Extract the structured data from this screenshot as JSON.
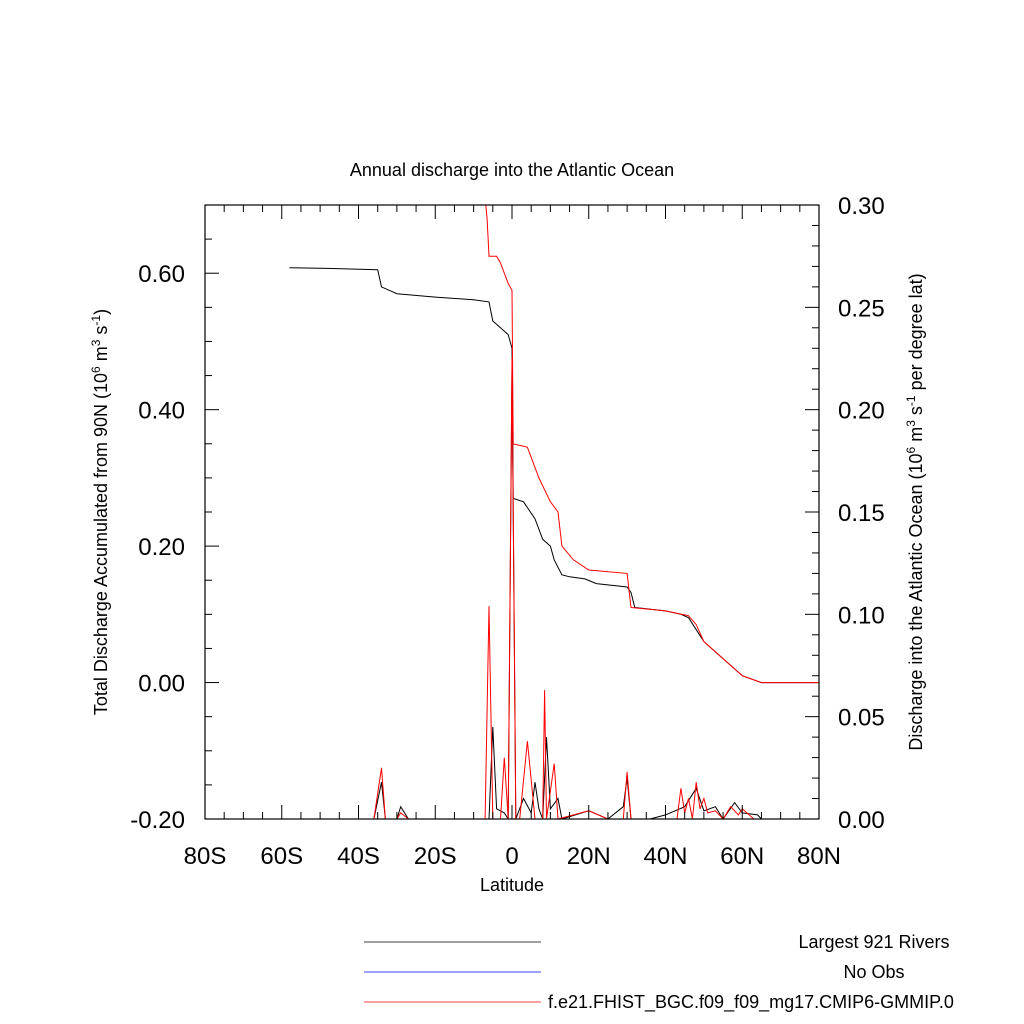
{
  "chart_data": {
    "type": "line",
    "title": "Annual discharge into the Atlantic Ocean",
    "xlabel": "Latitude",
    "ylabel_left": "Total Discharge Accumulated from 90N (10",
    "ylabel_left_sup1": "6",
    "ylabel_left_mid": " m",
    "ylabel_left_sup2": "3",
    "ylabel_left_mid2": " s",
    "ylabel_left_sup3": "-1",
    "ylabel_left_end": ")",
    "ylabel_right": "Discharge into the Atlantic Ocean (10",
    "ylabel_right_sup1": "6",
    "ylabel_right_mid": " m",
    "ylabel_right_sup2": "3",
    "ylabel_right_mid2": " s",
    "ylabel_right_sup3": "-1",
    "ylabel_right_end": " per degree lat)",
    "xlim": [
      -80,
      80
    ],
    "ylim_left": [
      -0.2,
      0.7
    ],
    "ylim_right": [
      0,
      0.3
    ],
    "x_ticks": [
      -80,
      -60,
      -40,
      -20,
      0,
      20,
      40,
      60,
      80
    ],
    "x_tick_labels": [
      "80S",
      "60S",
      "40S",
      "20S",
      "0",
      "20N",
      "40N",
      "60N",
      "80N"
    ],
    "y_left_ticks": [
      -0.2,
      0.0,
      0.2,
      0.4,
      0.6
    ],
    "y_left_tick_labels": [
      "-0.20",
      "0.00",
      "0.20",
      "0.40",
      "0.60"
    ],
    "y_right_ticks": [
      0,
      0.05,
      0.1,
      0.15,
      0.2,
      0.25,
      0.3
    ],
    "y_right_tick_labels": [
      "0.00",
      "0.05",
      "0.10",
      "0.15",
      "0.20",
      "0.25",
      "0.30"
    ],
    "grid": false,
    "legend_position": "bottom",
    "series": [
      {
        "name": "Largest 921 Rivers",
        "color": "#000000",
        "axis": "left",
        "points": [
          [
            -58,
            0.608
          ],
          [
            -48,
            0.607
          ],
          [
            -35,
            0.605
          ],
          [
            -34,
            0.58
          ],
          [
            -32,
            0.575
          ],
          [
            -30,
            0.57
          ],
          [
            -20,
            0.565
          ],
          [
            -10,
            0.561
          ],
          [
            -6,
            0.558
          ],
          [
            -5,
            0.53
          ],
          [
            -3,
            0.52
          ],
          [
            -1,
            0.51
          ],
          [
            0,
            0.49
          ],
          [
            0.3,
            0.27
          ],
          [
            3,
            0.265
          ],
          [
            6,
            0.24
          ],
          [
            8,
            0.21
          ],
          [
            10,
            0.2
          ],
          [
            11,
            0.18
          ],
          [
            13,
            0.158
          ],
          [
            15,
            0.155
          ],
          [
            19,
            0.152
          ],
          [
            22,
            0.145
          ],
          [
            30,
            0.14
          ],
          [
            31,
            0.132
          ],
          [
            32,
            0.11
          ],
          [
            40,
            0.105
          ],
          [
            44,
            0.1
          ],
          [
            46,
            0.095
          ],
          [
            50,
            0.06
          ],
          [
            54,
            0.04
          ],
          [
            60,
            0.01
          ],
          [
            65,
            0.0
          ],
          [
            80,
            0.0
          ]
        ]
      },
      {
        "name": "No Obs",
        "color": "#0000ff",
        "axis": "left",
        "points": []
      },
      {
        "name": "f.e21.FHIST_BGC.f09_f09_mg17.CMIP6-GMMIP.0",
        "color": "#ff0000",
        "axis": "left",
        "points": [
          [
            -7,
            0.71
          ],
          [
            -6.5,
            0.68
          ],
          [
            -6,
            0.625
          ],
          [
            -4,
            0.625
          ],
          [
            -3,
            0.615
          ],
          [
            -2,
            0.6
          ],
          [
            -1,
            0.585
          ],
          [
            0,
            0.575
          ],
          [
            0.3,
            0.35
          ],
          [
            4,
            0.345
          ],
          [
            7,
            0.3
          ],
          [
            10,
            0.265
          ],
          [
            12,
            0.25
          ],
          [
            13,
            0.2
          ],
          [
            16,
            0.18
          ],
          [
            20,
            0.165
          ],
          [
            30,
            0.16
          ],
          [
            31,
            0.11
          ],
          [
            40,
            0.105
          ],
          [
            46,
            0.098
          ],
          [
            48,
            0.085
          ],
          [
            50,
            0.06
          ],
          [
            54,
            0.04
          ],
          [
            60,
            0.01
          ],
          [
            65,
            0.0
          ],
          [
            80,
            0.0
          ]
        ]
      },
      {
        "name": "Largest 921 Rivers",
        "color": "#000000",
        "axis": "right",
        "points": [
          [
            -80,
            0
          ],
          [
            -36,
            0
          ],
          [
            -34,
            0.018
          ],
          [
            -33,
            0.0
          ],
          [
            -30,
            0
          ],
          [
            -29,
            0.006
          ],
          [
            -27,
            0
          ],
          [
            -8,
            0
          ],
          [
            -6,
            0.0
          ],
          [
            -5,
            0.045
          ],
          [
            -4,
            0.005
          ],
          [
            -2,
            0.003
          ],
          [
            -1,
            0.0
          ],
          [
            0,
            0.22
          ],
          [
            1,
            0.0
          ],
          [
            3,
            0.01
          ],
          [
            5,
            0.003
          ],
          [
            6,
            0.018
          ],
          [
            7,
            0.005
          ],
          [
            8,
            0.0
          ],
          [
            9,
            0.04
          ],
          [
            10,
            0.005
          ],
          [
            12,
            0.01
          ],
          [
            13,
            0.0
          ],
          [
            20,
            0.004
          ],
          [
            25,
            0.0
          ],
          [
            29,
            0.006
          ],
          [
            30,
            0.02
          ],
          [
            31,
            0.0
          ],
          [
            36,
            0.0
          ],
          [
            40,
            0.002
          ],
          [
            45,
            0.006
          ],
          [
            48,
            0.015
          ],
          [
            50,
            0.004
          ],
          [
            53,
            0.006
          ],
          [
            55,
            0.0
          ],
          [
            58,
            0.008
          ],
          [
            60,
            0.003
          ],
          [
            64,
            0.002
          ],
          [
            65,
            0.0
          ],
          [
            80,
            0
          ]
        ]
      },
      {
        "name": "f.e21.FHIST_BGC.f09_f09_mg17.CMIP6-GMMIP.0",
        "color": "#ff0000",
        "axis": "right",
        "points": [
          [
            -80,
            0
          ],
          [
            -36,
            0
          ],
          [
            -34,
            0.025
          ],
          [
            -33,
            0.0
          ],
          [
            -30,
            0
          ],
          [
            -29,
            0.003
          ],
          [
            -27,
            0
          ],
          [
            -8,
            0
          ],
          [
            -7,
            0.0
          ],
          [
            -6,
            0.104
          ],
          [
            -5,
            0.0
          ],
          [
            -3,
            0.0
          ],
          [
            -2,
            0.03
          ],
          [
            -1,
            0.0
          ],
          [
            0,
            0.225
          ],
          [
            1,
            0.0
          ],
          [
            2,
            0.0
          ],
          [
            4,
            0.038
          ],
          [
            6,
            0.0
          ],
          [
            8,
            0.0
          ],
          [
            8.5,
            0.063
          ],
          [
            9,
            0.0
          ],
          [
            11,
            0.027
          ],
          [
            12,
            0.0
          ],
          [
            20,
            0.004
          ],
          [
            25,
            0.0
          ],
          [
            29,
            0.0
          ],
          [
            30,
            0.023
          ],
          [
            31,
            0.0
          ],
          [
            40,
            0.0
          ],
          [
            43,
            0.0
          ],
          [
            44,
            0.015
          ],
          [
            45,
            0.003
          ],
          [
            46,
            0.01
          ],
          [
            47,
            0.0
          ],
          [
            48,
            0.018
          ],
          [
            49,
            0.005
          ],
          [
            50,
            0.01
          ],
          [
            51,
            0.003
          ],
          [
            53,
            0.004
          ],
          [
            55,
            0.0
          ],
          [
            57,
            0.006
          ],
          [
            59,
            0.002
          ],
          [
            60,
            0.005
          ],
          [
            63,
            0.0
          ],
          [
            80,
            0
          ]
        ]
      }
    ]
  }
}
